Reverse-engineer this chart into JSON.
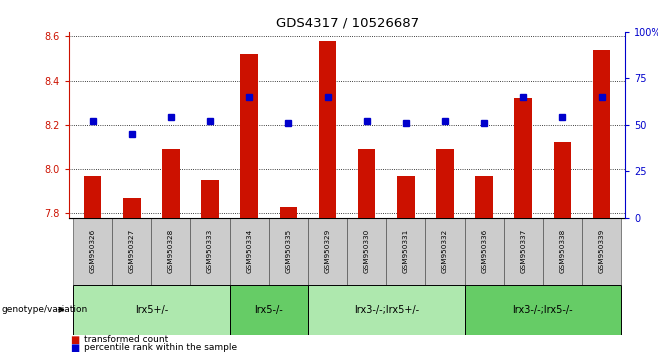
{
  "title": "GDS4317 / 10526687",
  "samples": [
    "GSM950326",
    "GSM950327",
    "GSM950328",
    "GSM950333",
    "GSM950334",
    "GSM950335",
    "GSM950329",
    "GSM950330",
    "GSM950331",
    "GSM950332",
    "GSM950336",
    "GSM950337",
    "GSM950338",
    "GSM950339"
  ],
  "red_values": [
    7.97,
    7.87,
    8.09,
    7.95,
    8.52,
    7.83,
    8.58,
    8.09,
    7.97,
    8.09,
    7.97,
    8.32,
    8.12,
    8.54
  ],
  "blue_percentiles": [
    52,
    45,
    54,
    52,
    65,
    51,
    65,
    52,
    51,
    52,
    51,
    65,
    54,
    65
  ],
  "ylim_left": [
    7.78,
    8.62
  ],
  "ylim_right": [
    0,
    100
  ],
  "yticks_left": [
    7.8,
    8.0,
    8.2,
    8.4,
    8.6
  ],
  "yticks_right": [
    0,
    25,
    50,
    75,
    100
  ],
  "groups": [
    {
      "label": "lrx5+/-",
      "start": 0,
      "end": 3,
      "color": "#aee8ae"
    },
    {
      "label": "lrx5-/-",
      "start": 4,
      "end": 5,
      "color": "#66cc66"
    },
    {
      "label": "lrx3-/-;lrx5+/-",
      "start": 6,
      "end": 9,
      "color": "#aee8ae"
    },
    {
      "label": "lrx3-/-;lrx5-/-",
      "start": 10,
      "end": 13,
      "color": "#66cc66"
    }
  ],
  "red_color": "#cc1100",
  "blue_color": "#0000cc",
  "bar_width": 0.45,
  "legend_red": "transformed count",
  "legend_blue": "percentile rank within the sample",
  "genotype_label": "genotype/variation"
}
